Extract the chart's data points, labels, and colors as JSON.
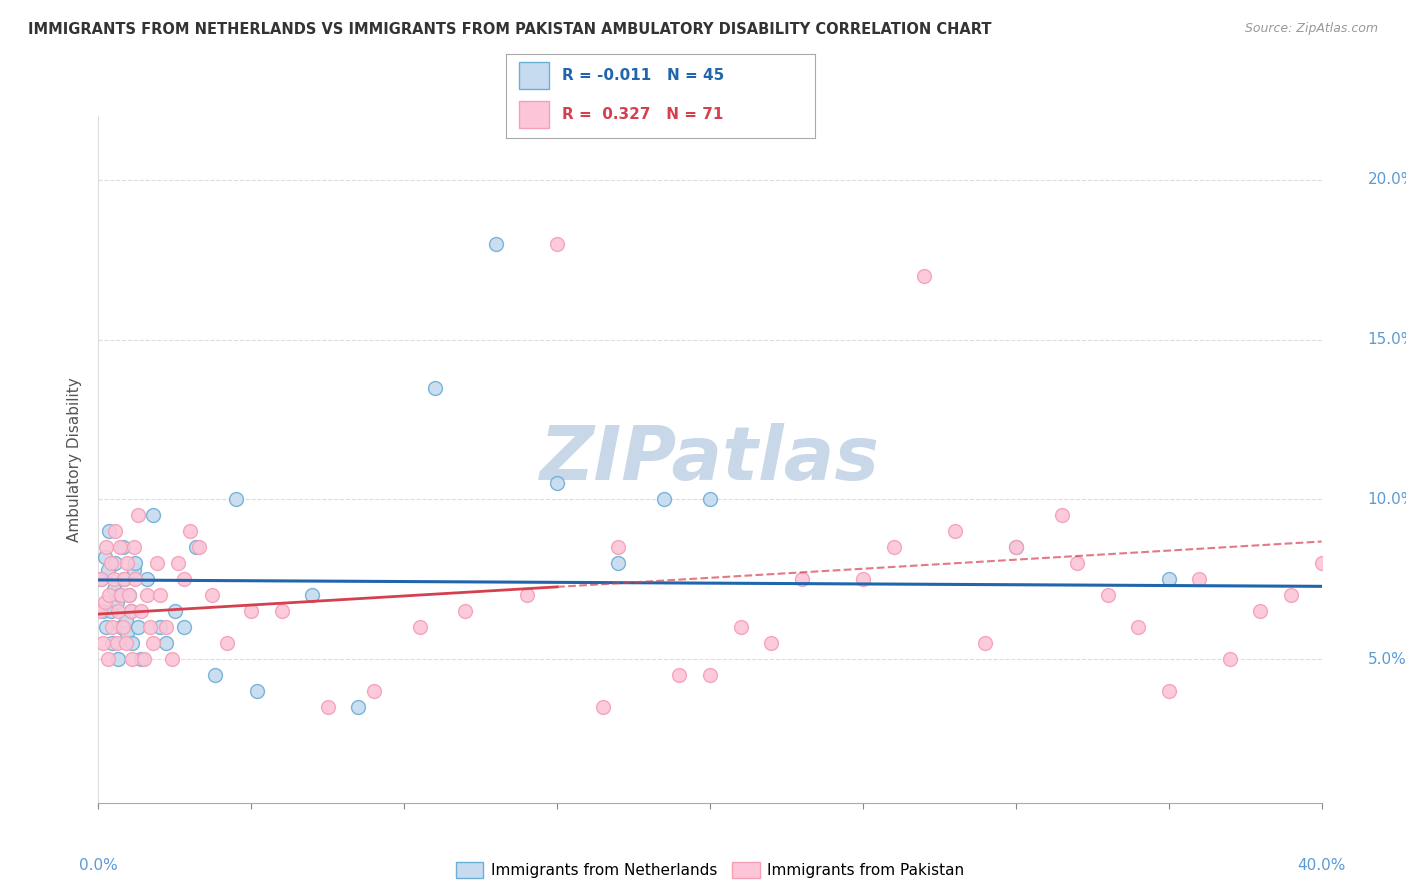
{
  "title": "IMMIGRANTS FROM NETHERLANDS VS IMMIGRANTS FROM PAKISTAN AMBULATORY DISABILITY CORRELATION CHART",
  "source": "Source: ZipAtlas.com",
  "ylabel": "Ambulatory Disability",
  "legend1_R": "-0.011",
  "legend1_N": "45",
  "legend2_R": "0.327",
  "legend2_N": "71",
  "blue_scatter_face": "#c6dbef",
  "blue_scatter_edge": "#6baed6",
  "pink_scatter_face": "#fcc5d8",
  "pink_scatter_edge": "#f4a0b5",
  "blue_line_color": "#2166ac",
  "pink_line_color": "#d6404e",
  "watermark": "ZIPatlas",
  "watermark_color": "#c8d8e8",
  "grid_color": "#dddddd",
  "label_color": "#5b9bd5",
  "xlim": [
    0.0,
    40.0
  ],
  "ylim": [
    0.5,
    22.0
  ],
  "netherlands_x": [
    0.1,
    0.15,
    0.2,
    0.25,
    0.3,
    0.35,
    0.4,
    0.45,
    0.5,
    0.55,
    0.6,
    0.65,
    0.7,
    0.75,
    0.8,
    0.85,
    0.9,
    0.95,
    1.0,
    1.05,
    1.1,
    1.15,
    1.2,
    1.3,
    1.4,
    1.6,
    1.8,
    2.0,
    2.2,
    2.5,
    2.8,
    3.2,
    3.8,
    4.5,
    5.2,
    7.0,
    8.5,
    11.0,
    13.0,
    15.0,
    17.0,
    18.5,
    20.0,
    30.0,
    35.0
  ],
  "netherlands_y": [
    7.5,
    6.5,
    8.2,
    6.0,
    7.8,
    9.0,
    6.5,
    5.5,
    7.2,
    8.0,
    6.8,
    5.0,
    7.0,
    6.0,
    8.5,
    7.5,
    6.2,
    5.8,
    7.0,
    6.5,
    5.5,
    7.8,
    8.0,
    6.0,
    5.0,
    7.5,
    9.5,
    6.0,
    5.5,
    6.5,
    6.0,
    8.5,
    4.5,
    10.0,
    4.0,
    7.0,
    3.5,
    13.5,
    18.0,
    10.5,
    8.0,
    10.0,
    10.0,
    8.5,
    7.5
  ],
  "pakistan_x": [
    0.05,
    0.1,
    0.15,
    0.2,
    0.25,
    0.3,
    0.35,
    0.4,
    0.45,
    0.5,
    0.55,
    0.6,
    0.65,
    0.7,
    0.75,
    0.8,
    0.85,
    0.9,
    0.95,
    1.0,
    1.05,
    1.1,
    1.15,
    1.2,
    1.3,
    1.4,
    1.5,
    1.6,
    1.7,
    1.8,
    1.9,
    2.0,
    2.2,
    2.4,
    2.6,
    2.8,
    3.0,
    3.3,
    3.7,
    4.2,
    5.0,
    6.0,
    7.5,
    9.0,
    10.5,
    12.0,
    14.0,
    17.0,
    20.0,
    22.0,
    25.0,
    28.0,
    30.0,
    31.5,
    32.0,
    33.0,
    34.0,
    35.0,
    36.0,
    37.0,
    38.0,
    39.0,
    40.0,
    15.0,
    16.5,
    19.0,
    21.0,
    23.0,
    26.0,
    27.0,
    29.0
  ],
  "pakistan_y": [
    6.5,
    7.5,
    5.5,
    6.8,
    8.5,
    5.0,
    7.0,
    8.0,
    6.0,
    7.5,
    9.0,
    5.5,
    6.5,
    8.5,
    7.0,
    6.0,
    7.5,
    5.5,
    8.0,
    7.0,
    6.5,
    5.0,
    8.5,
    7.5,
    9.5,
    6.5,
    5.0,
    7.0,
    6.0,
    5.5,
    8.0,
    7.0,
    6.0,
    5.0,
    8.0,
    7.5,
    9.0,
    8.5,
    7.0,
    5.5,
    6.5,
    6.5,
    3.5,
    4.0,
    6.0,
    6.5,
    7.0,
    8.5,
    4.5,
    5.5,
    7.5,
    9.0,
    8.5,
    9.5,
    8.0,
    7.0,
    6.0,
    4.0,
    7.5,
    5.0,
    6.5,
    7.0,
    8.0,
    18.0,
    3.5,
    4.5,
    6.0,
    7.5,
    8.5,
    17.0,
    5.5
  ]
}
